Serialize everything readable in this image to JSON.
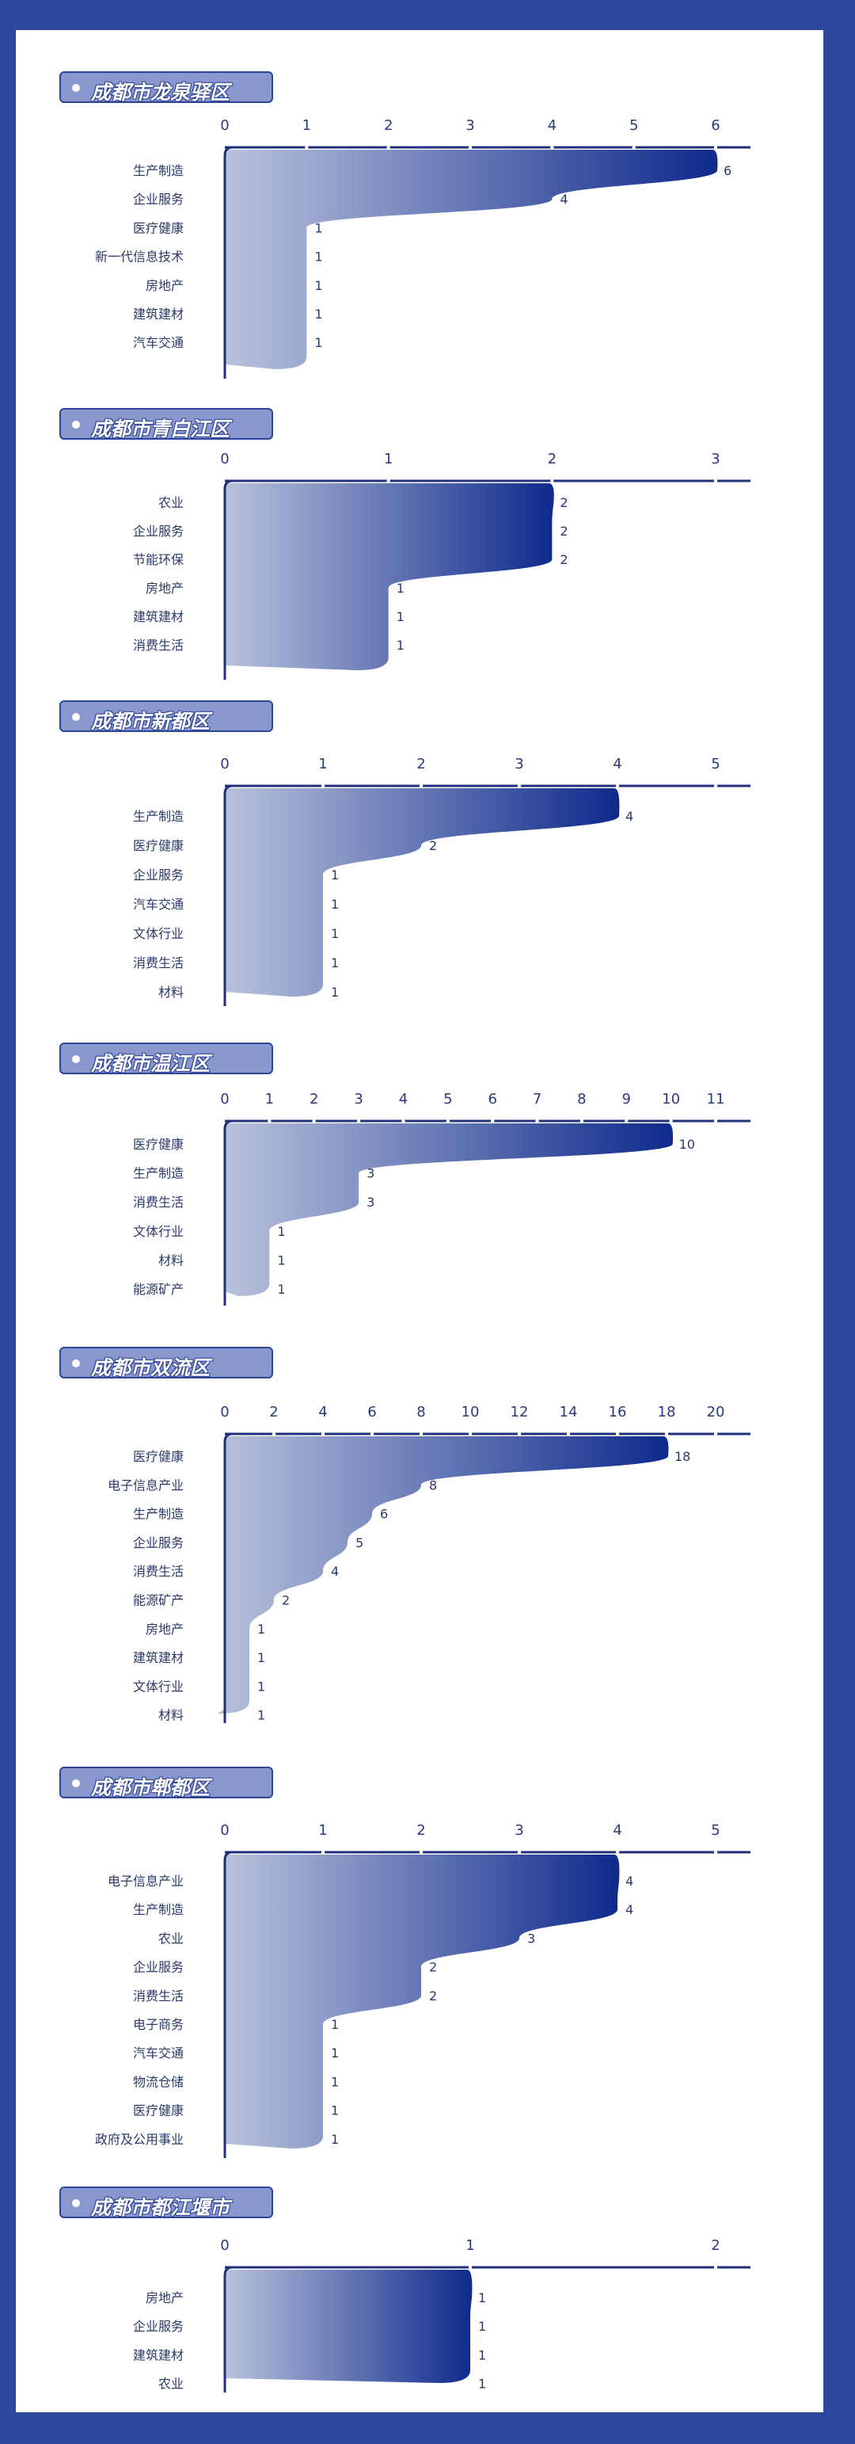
{
  "colors": {
    "frame": "#2d479c",
    "axis": "#1f2f7a",
    "gradient_start": "#b9c2dc",
    "gradient_end": "#0e2a8c",
    "badge": "#8898cf"
  },
  "chart_data": [
    {
      "type": "bar",
      "title": "成都市龙泉驿区",
      "categories": [
        "生产制造",
        "企业服务",
        "医疗健康",
        "新一代信息技术",
        "房地产",
        "建筑建材",
        "汽车交通"
      ],
      "values": [
        6,
        4,
        1,
        1,
        1,
        1,
        1
      ],
      "xlim": [
        0,
        6
      ],
      "ticks": [
        0,
        1,
        2,
        3,
        4,
        5,
        6
      ]
    },
    {
      "type": "bar",
      "title": "成都市青白江区",
      "categories": [
        "农业",
        "企业服务",
        "节能环保",
        "房地产",
        "建筑建材",
        "消费生活"
      ],
      "values": [
        2,
        2,
        2,
        1,
        1,
        1
      ],
      "xlim": [
        0,
        3
      ],
      "ticks": [
        0,
        1,
        2,
        3
      ]
    },
    {
      "type": "bar",
      "title": "成都市新都区",
      "categories": [
        "生产制造",
        "医疗健康",
        "企业服务",
        "汽车交通",
        "文体行业",
        "消费生活",
        "材料"
      ],
      "values": [
        4,
        2,
        1,
        1,
        1,
        1,
        1
      ],
      "xlim": [
        0,
        5
      ],
      "ticks": [
        0,
        1,
        2,
        3,
        4,
        5
      ]
    },
    {
      "type": "bar",
      "title": "成都市温江区",
      "categories": [
        "医疗健康",
        "生产制造",
        "消费生活",
        "文体行业",
        "材料",
        "能源矿产"
      ],
      "values": [
        10,
        3,
        3,
        1,
        1,
        1
      ],
      "xlim": [
        0,
        11
      ],
      "ticks": [
        0,
        1,
        2,
        3,
        4,
        5,
        6,
        7,
        8,
        9,
        10,
        11
      ]
    },
    {
      "type": "bar",
      "title": "成都市双流区",
      "categories": [
        "医疗健康",
        "电子信息产业",
        "生产制造",
        "企业服务",
        "消费生活",
        "能源矿产",
        "房地产",
        "建筑建材",
        "文体行业",
        "材料"
      ],
      "values": [
        18,
        8,
        6,
        5,
        4,
        2,
        1,
        1,
        1,
        1
      ],
      "xlim": [
        0,
        20
      ],
      "ticks": [
        0,
        2,
        4,
        6,
        8,
        10,
        12,
        14,
        16,
        18,
        20
      ]
    },
    {
      "type": "bar",
      "title": "成都市郫都区",
      "categories": [
        "电子信息产业",
        "生产制造",
        "农业",
        "企业服务",
        "消费生活",
        "电子商务",
        "汽车交通",
        "物流仓储",
        "医疗健康",
        "政府及公用事业"
      ],
      "values": [
        4,
        4,
        3,
        2,
        2,
        1,
        1,
        1,
        1,
        1
      ],
      "xlim": [
        0,
        5
      ],
      "ticks": [
        0,
        1,
        2,
        3,
        4,
        5
      ]
    },
    {
      "type": "bar",
      "title": "成都市都江堰市",
      "categories": [
        "房地产",
        "企业服务",
        "建筑建材",
        "农业"
      ],
      "values": [
        1,
        1,
        1,
        1
      ],
      "xlim": [
        0,
        2
      ],
      "ticks": [
        0,
        1,
        2
      ]
    }
  ]
}
